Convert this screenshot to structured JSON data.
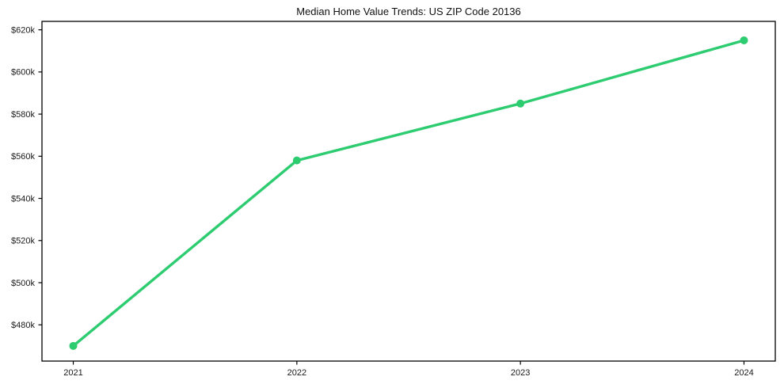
{
  "chart_data": {
    "type": "line",
    "title": "Median Home Value Trends: US ZIP Code 20136",
    "xlabel": "",
    "ylabel": "",
    "x": [
      2021,
      2022,
      2023,
      2024
    ],
    "x_tick_labels": [
      "2021",
      "2022",
      "2023",
      "2024"
    ],
    "values": [
      470000,
      558000,
      585000,
      615000
    ],
    "y_ticks": [
      480000,
      500000,
      520000,
      540000,
      560000,
      580000,
      600000,
      620000
    ],
    "y_tick_labels": [
      "$480k",
      "$500k",
      "$520k",
      "$540k",
      "$560k",
      "$580k",
      "$600k",
      "$620k"
    ],
    "xlim": [
      2020.86,
      2024.14
    ],
    "ylim": [
      462800,
      624000
    ],
    "grid": false,
    "legend": "none",
    "line_color": "#2ecc71",
    "marker": "circle",
    "axis_color": "#000000",
    "tick_label_color": "#1a1a1a"
  }
}
